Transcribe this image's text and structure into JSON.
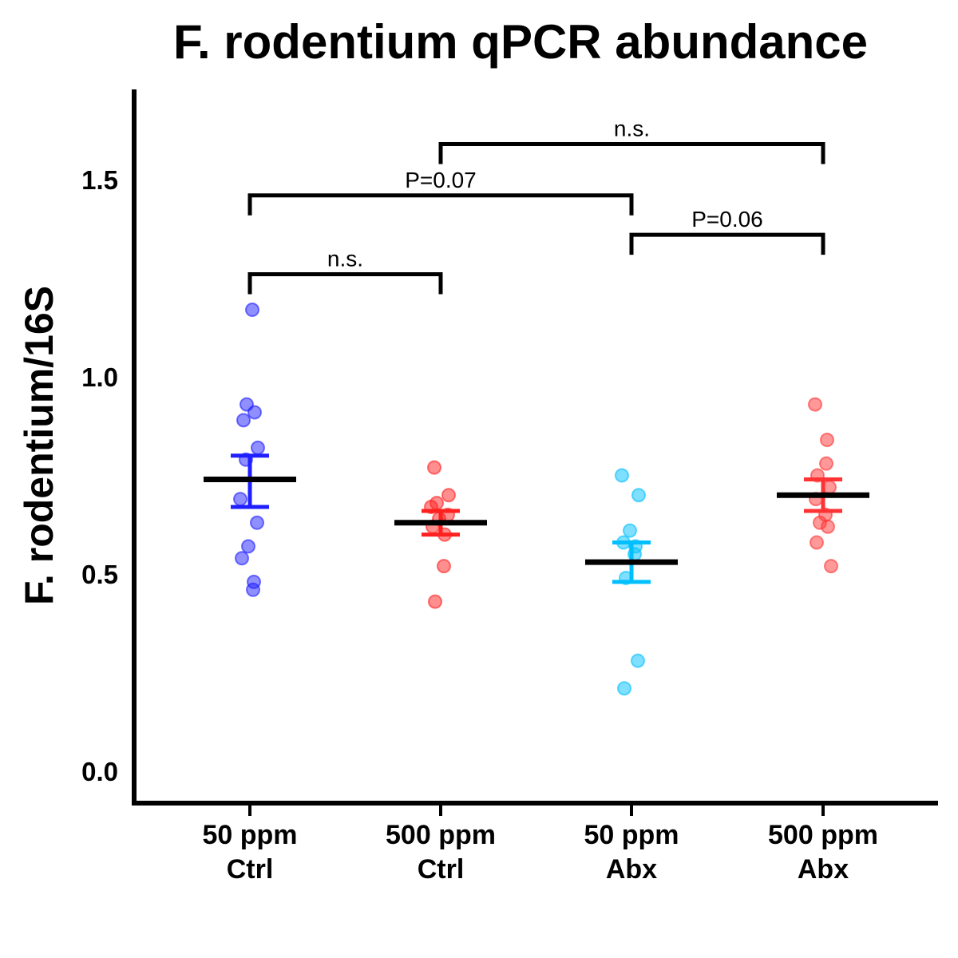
{
  "chart_data": {
    "type": "scatter",
    "title": "F. rodentium qPCR abundance",
    "ylabel": "F. rodentium/16S",
    "xlabel": "",
    "ylim": [
      -0.07,
      1.72
    ],
    "yticks": [
      "0.0",
      "0.5",
      "1.0",
      "1.5"
    ],
    "categories": [
      {
        "line1": "50 ppm",
        "line2": "Ctrl"
      },
      {
        "line1": "500 ppm",
        "line2": "Ctrl"
      },
      {
        "line1": "50 ppm",
        "line2": "Abx"
      },
      {
        "line1": "500 ppm",
        "line2": "Abx"
      }
    ],
    "series": [
      {
        "color": "#1f1fff",
        "mean": 0.74,
        "sem_low": 0.67,
        "sem_high": 0.8,
        "points": [
          1.17,
          0.93,
          0.91,
          0.89,
          0.82,
          0.79,
          0.69,
          0.63,
          0.57,
          0.54,
          0.48,
          0.46
        ]
      },
      {
        "color": "#ff2020",
        "mean": 0.63,
        "sem_low": 0.6,
        "sem_high": 0.66,
        "points": [
          0.77,
          0.7,
          0.68,
          0.67,
          0.65,
          0.64,
          0.62,
          0.6,
          0.52,
          0.43
        ]
      },
      {
        "color": "#00bfff",
        "mean": 0.53,
        "sem_low": 0.48,
        "sem_high": 0.58,
        "points": [
          0.75,
          0.7,
          0.61,
          0.58,
          0.57,
          0.55,
          0.49,
          0.28,
          0.21
        ]
      },
      {
        "color": "#ff3333",
        "mean": 0.7,
        "sem_low": 0.66,
        "sem_high": 0.74,
        "points": [
          0.93,
          0.84,
          0.78,
          0.75,
          0.72,
          0.69,
          0.65,
          0.63,
          0.62,
          0.58,
          0.52
        ]
      }
    ],
    "annotations": [
      {
        "from": 0,
        "to": 1,
        "y": 1.26,
        "label": "n.s."
      },
      {
        "from": 0,
        "to": 2,
        "y": 1.46,
        "label": "P=0.07"
      },
      {
        "from": 2,
        "to": 3,
        "y": 1.36,
        "label": "P=0.06"
      },
      {
        "from": 1,
        "to": 3,
        "y": 1.59,
        "label": "n.s."
      }
    ]
  }
}
